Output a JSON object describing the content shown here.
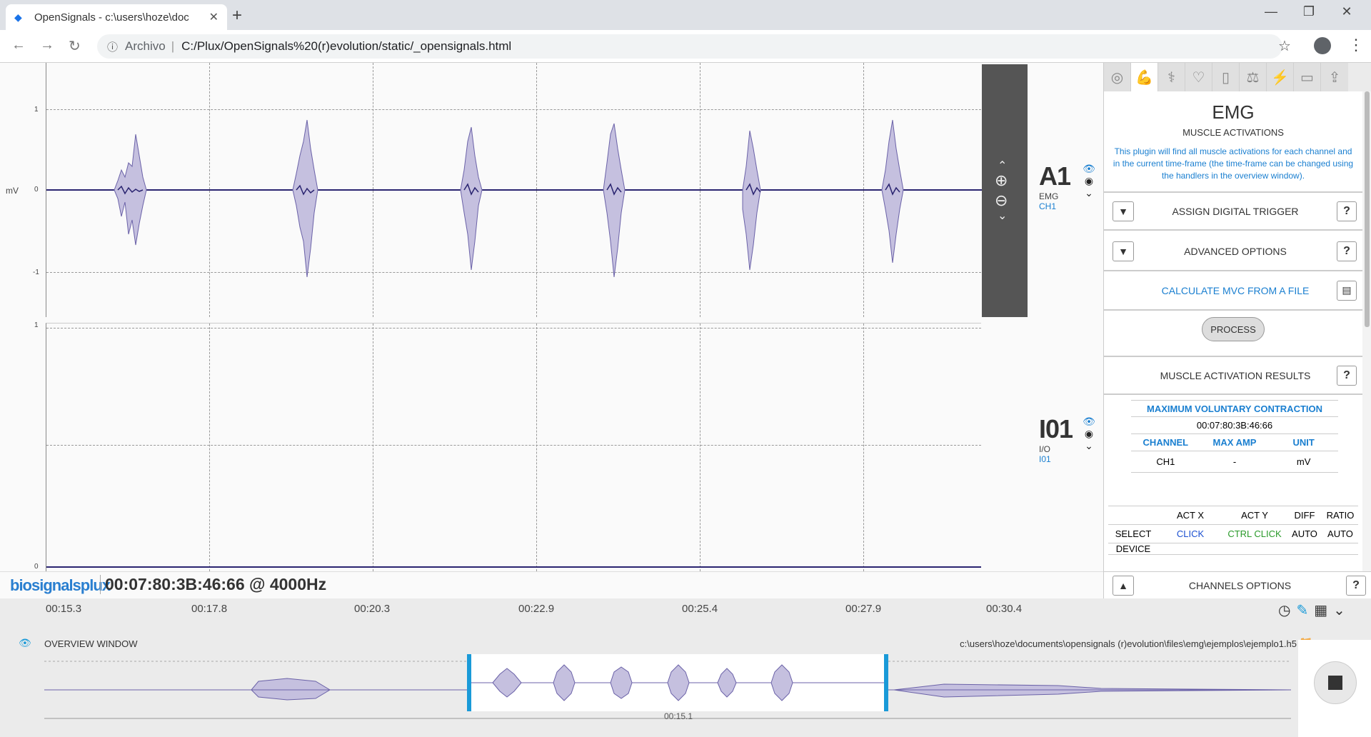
{
  "browser": {
    "tab_title": "OpenSignals - c:\\users\\hoze\\doc",
    "url_scheme": "Archivo",
    "url": "C:/Plux/OpenSignals%20(r)evolution/static/_opensignals.html"
  },
  "graph": {
    "y_unit": "mV",
    "ch1_ticks": [
      "1",
      "0",
      "-1"
    ],
    "ch2_ticks": [
      "1",
      "0"
    ],
    "channels": [
      {
        "id": "A1",
        "type": "EMG",
        "name": "CH1"
      },
      {
        "id": "I01",
        "type": "I/O",
        "name": "I01"
      }
    ],
    "logo": "biosignalsplux",
    "timecode": "00:07:80:3B:46:66 @ 4000Hz"
  },
  "timeline": {
    "labels": [
      "00:15.3",
      "00:17.8",
      "00:20.3",
      "00:22.9",
      "00:25.4",
      "00:27.9",
      "00:30.4"
    ]
  },
  "panel": {
    "title": "EMG",
    "subtitle": "MUSCLE ACTIVATIONS",
    "description": "This plugin will find all muscle activations for each channel and in the current time-frame (the time-frame can be changed using the handlers in the overview window).",
    "assign_trigger": "ASSIGN DIGITAL TRIGGER",
    "advanced_options": "ADVANCED OPTIONS",
    "calc_mvc": "CALCULATE MVC FROM A FILE",
    "process": "PROCESS",
    "results": "MUSCLE ACTIVATION RESULTS",
    "mvc": {
      "header": "MAXIMUM VOLUNTARY CONTRACTION",
      "time": "00:07:80:3B:46:66",
      "cols": [
        "CHANNEL",
        "MAX AMP",
        "UNIT"
      ],
      "row": [
        "CH1",
        "-",
        "mV"
      ]
    },
    "act": {
      "cols": [
        "",
        "ACT X",
        "ACT Y",
        "DIFF",
        "RATIO"
      ],
      "select": [
        "SELECT",
        "CLICK",
        "CTRL CLICK",
        "AUTO",
        "AUTO"
      ],
      "device_label": "DEVICE"
    },
    "channels_options": "CHANNELS OPTIONS",
    "help": "?"
  },
  "overview": {
    "title": "OVERVIEW WINDOW",
    "path": "c:\\users\\hoze\\documents\\opensignals (r)evolution\\files\\emg\\ejemplos\\ejemplo1.h5",
    "window_time": "00:15.1"
  },
  "colors": {
    "signal_fill": "#c5c0df",
    "signal_line": "#6b62a8",
    "accent": "#1a9ad8"
  }
}
